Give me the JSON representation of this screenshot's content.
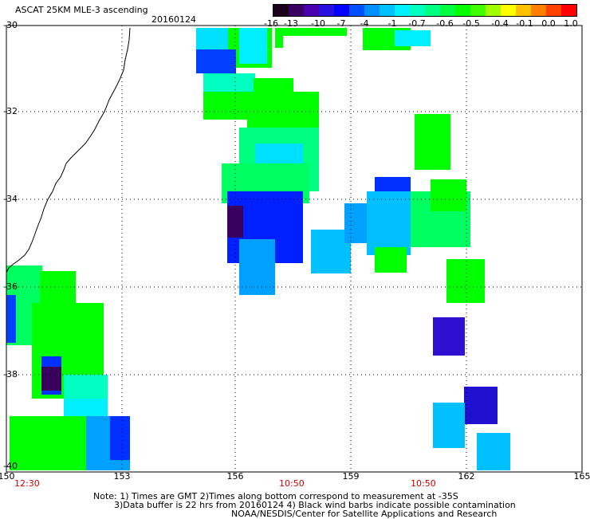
{
  "header": {
    "title": "ASCAT 25KM MLE-3 ascending",
    "date": "20160124"
  },
  "colorbar": {
    "tick_labels": [
      "-16",
      "-13",
      "-10",
      "-7",
      "-4",
      "-1",
      "-0.7",
      "-0.6",
      "-0.5",
      "-0.4",
      "-0.1",
      "0.0",
      "1.0"
    ],
    "colors": [
      "#1a001a",
      "#3a0060",
      "#4b00b0",
      "#2a10e0",
      "#0000ff",
      "#0050ff",
      "#0090ff",
      "#00c0ff",
      "#00f0ff",
      "#00ffc0",
      "#00ff80",
      "#00ff40",
      "#00ff00",
      "#40ff00",
      "#a0ff00",
      "#ffff00",
      "#ffc000",
      "#ff8000",
      "#ff4000",
      "#ff0000"
    ]
  },
  "map": {
    "lat_labels": [
      "-30",
      "-32",
      "-34",
      "-36",
      "-38",
      "-40"
    ],
    "lon_labels": [
      "150",
      "153",
      "156",
      "159",
      "162",
      "165"
    ],
    "time_labels": [
      "12:30",
      "10:50",
      "10:50"
    ]
  },
  "footer": {
    "line1": "Note: 1) Times are GMT 2)Times along bottom correspond to measurement at -35S",
    "line2": "3)Data buffer is 22 hrs from 20160124 4) Black wind barbs indicate possible contamination",
    "line3": "NOAA/NESDIS/Center for Satellite Applications and Research"
  }
}
